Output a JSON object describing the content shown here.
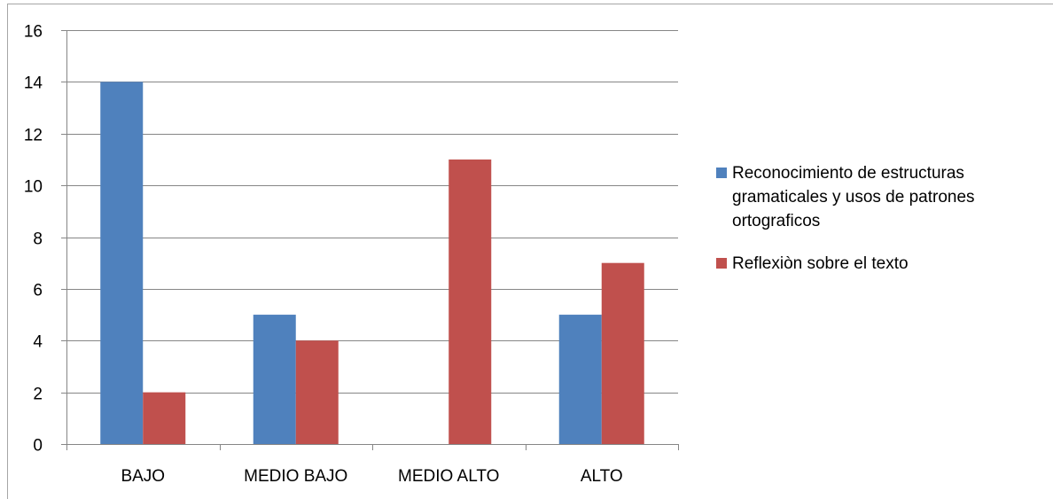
{
  "chart_data": {
    "type": "bar",
    "categories": [
      "BAJO",
      "MEDIO BAJO",
      "MEDIO ALTO",
      "ALTO"
    ],
    "series": [
      {
        "name": "Reconocimiento de estructuras gramaticales y usos de patrones ortograficos",
        "legend_lines": [
          "Reconocimiento de estructuras",
          "gramaticales y usos de patrones",
          "ortograficos"
        ],
        "values": [
          14,
          5,
          0,
          5
        ],
        "color": "#4f81bd"
      },
      {
        "name": "Reflexiòn sobre el texto",
        "legend_lines": [
          "Reflexiòn sobre el texto"
        ],
        "values": [
          2,
          4,
          11,
          7
        ],
        "color": "#c0504d"
      }
    ],
    "title": "",
    "xlabel": "",
    "ylabel": "",
    "ylim": [
      0,
      16
    ],
    "yticks": [
      "0",
      "2",
      "4",
      "6",
      "8",
      "10",
      "12",
      "14",
      "16"
    ],
    "grid": true,
    "legend": "right"
  }
}
